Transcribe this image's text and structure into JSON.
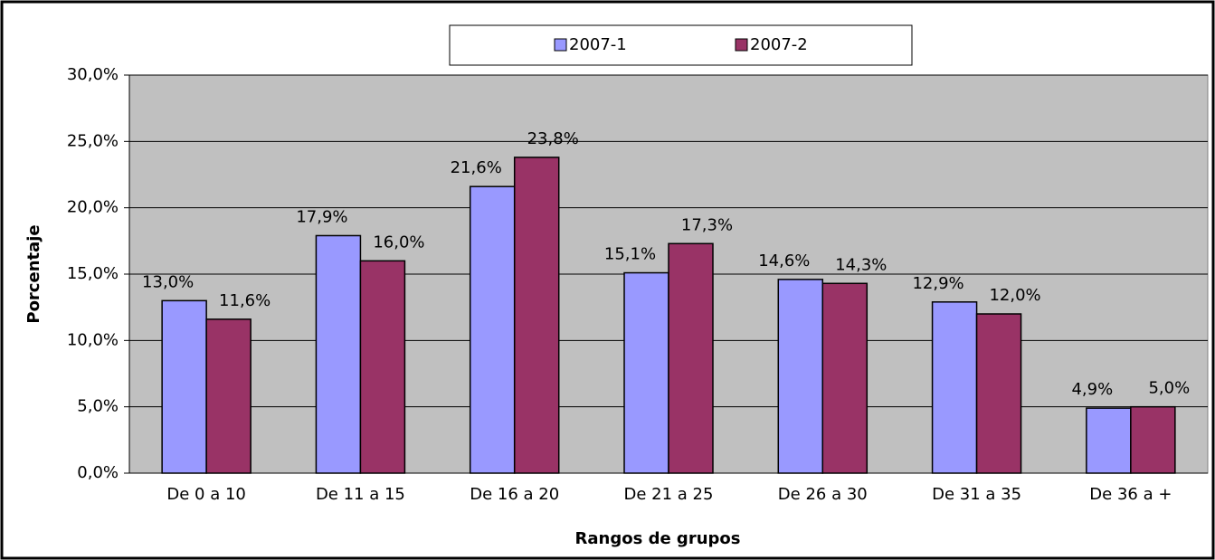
{
  "chart_data": {
    "type": "bar",
    "x_label": "Rangos de grupos",
    "y_label": "Porcentaje",
    "categories": [
      "De 0 a 10",
      "De 11 a 15",
      "De 16 a 20",
      "De 21 a 25",
      "De 26 a 30",
      "De 31 a 35",
      "De 36 a +"
    ],
    "series": [
      {
        "name": "2007-1",
        "color": "#9999ff",
        "values": [
          13.0,
          17.9,
          21.6,
          15.1,
          14.6,
          12.9,
          4.9
        ],
        "value_labels": [
          "13,0%",
          "17,9%",
          "21,6%",
          "15,1%",
          "14,6%",
          "12,9%",
          "4,9%"
        ]
      },
      {
        "name": "2007-2",
        "color": "#993366",
        "values": [
          11.6,
          16.0,
          23.8,
          17.3,
          14.3,
          12.0,
          5.0
        ],
        "value_labels": [
          "11,6%",
          "16,0%",
          "23,8%",
          "17,3%",
          "14,3%",
          "12,0%",
          "5,0%"
        ]
      }
    ],
    "ylim": [
      0,
      30
    ],
    "yticks": [
      {
        "value": 0,
        "label": "0,0%"
      },
      {
        "value": 5,
        "label": "5,0%"
      },
      {
        "value": 10,
        "label": "10,0%"
      },
      {
        "value": 15,
        "label": "15,0%"
      },
      {
        "value": 20,
        "label": "20,0%"
      },
      {
        "value": 25,
        "label": "25,0%"
      },
      {
        "value": 30,
        "label": "30,0%"
      }
    ],
    "grid": true,
    "legend": "top"
  }
}
